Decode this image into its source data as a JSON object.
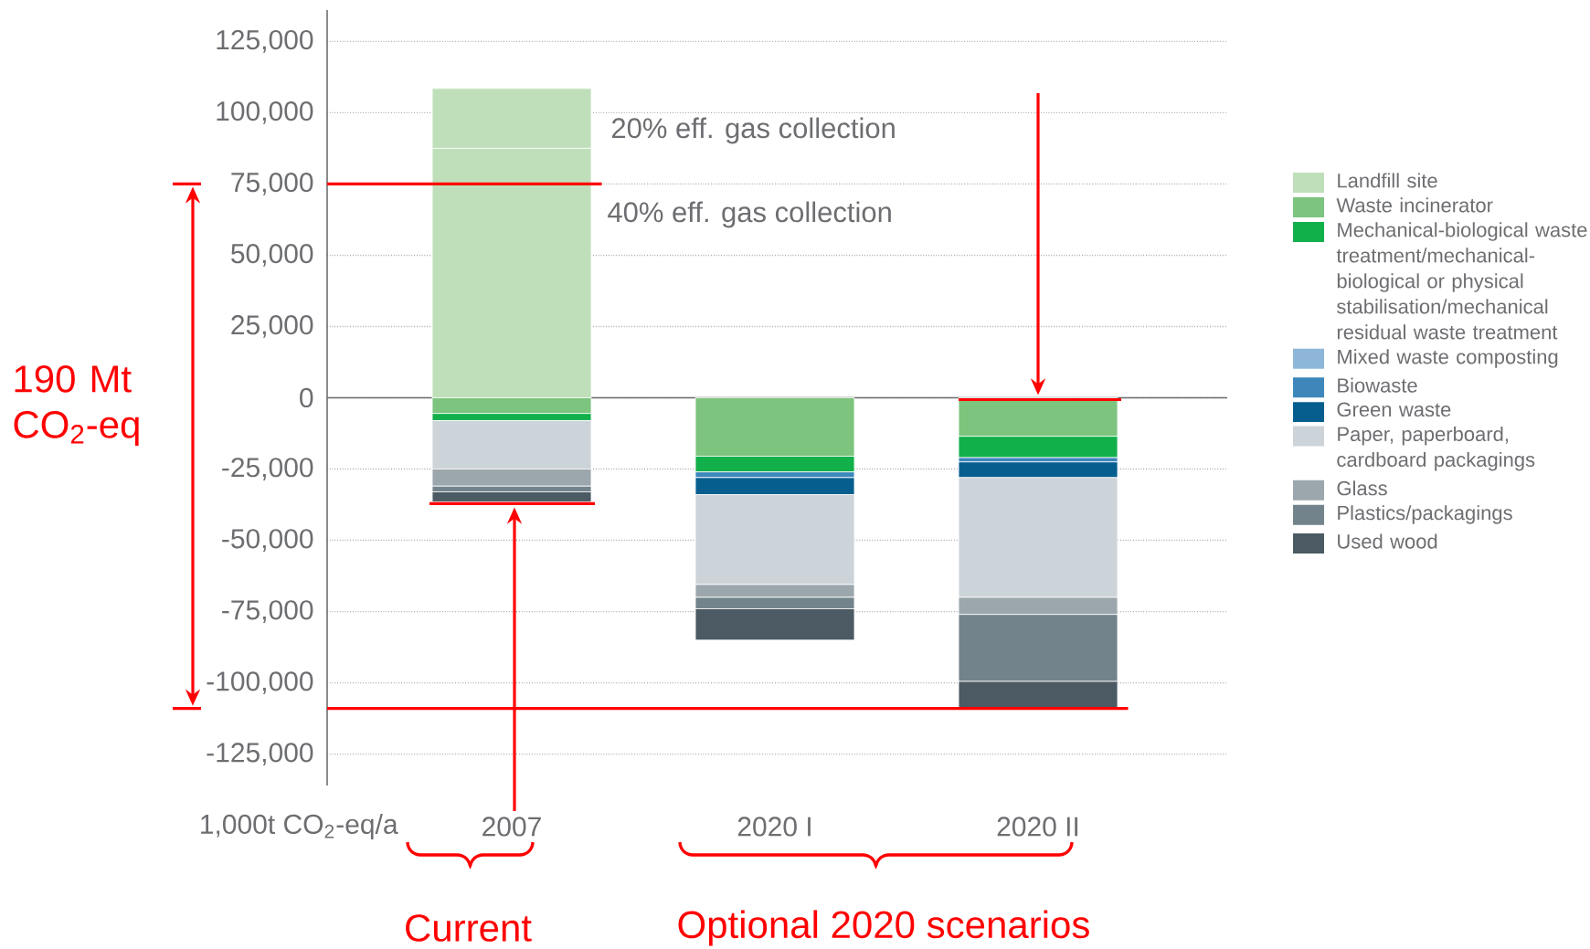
{
  "chart_data": {
    "type": "bar",
    "stacked": true,
    "categories": [
      "2007",
      "2020 I",
      "2020 II"
    ],
    "ylim": [
      -136000,
      136000
    ],
    "yticks": [
      {
        "value": -125000,
        "label": "-125,000"
      },
      {
        "value": -100000,
        "label": "-100,000"
      },
      {
        "value": -75000,
        "label": "-75,000"
      },
      {
        "value": -50000,
        "label": "-50,000"
      },
      {
        "value": -25000,
        "label": "-25,000"
      },
      0,
      {
        "value": 25000,
        "label": "25,000"
      },
      {
        "value": 50000,
        "label": "50,000"
      },
      {
        "value": 75000,
        "label": "75,000"
      },
      {
        "value": 100000,
        "label": "100,000"
      },
      {
        "value": 125000,
        "label": "125,000"
      }
    ],
    "grid": "y",
    "legend": "right",
    "series": [
      {
        "name": "Landfill site",
        "color": "#bfdfba",
        "values": [
          87500,
          null,
          null
        ]
      },
      {
        "color": "#bfdfba",
        "values": [
          21000,
          null,
          null
        ]
      },
      {
        "name": "Waste incinerator",
        "color": "#7dc47e",
        "values": [
          -5500,
          -20500,
          -13500
        ]
      },
      {
        "name": "Mechanical-biological waste treatment/mechanical-biological or physical stabilisation/mechanical residual waste treatment",
        "color": "#12b04b",
        "values": [
          -2500,
          -5500,
          -7500
        ]
      },
      {
        "name": "Mixed waste composting",
        "color": "#8db6d9",
        "values": [
          null,
          null,
          null
        ]
      },
      {
        "name": "Biowaste",
        "color": "#3d87bb",
        "values": [
          null,
          -2000,
          -1500
        ]
      },
      {
        "name": "Green waste",
        "color": "#065e8f",
        "values": [
          null,
          -6000,
          -5500
        ]
      },
      {
        "name": "Paper, paperboard, cardboard packagings",
        "color": "#ccd3d9",
        "values": [
          -17000,
          -31500,
          -42000
        ]
      },
      {
        "name": "Glass",
        "color": "#9ca7ad",
        "values": [
          -6000,
          -4500,
          -6000
        ]
      },
      {
        "name": "Plastics/packagings",
        "color": "#72838b",
        "values": [
          -2000,
          -4000,
          -23500
        ]
      },
      {
        "name": "Used wood",
        "color": "#4b5a63",
        "values": [
          -3500,
          -11000,
          -9500
        ]
      }
    ],
    "ref_lines": [
      {
        "axis": "y",
        "value": 75000,
        "color": "#ff0000"
      },
      {
        "axis": "y",
        "value": -109000,
        "color": "#ff0000"
      }
    ],
    "annotations": [
      "20% eff. gas collection",
      "40% eff. gas collection",
      "1,000t CO$_{2}$-eq/a",
      "190 Mt CO$_{2}$-eq",
      "Current",
      "Optional 2020 scenarios"
    ]
  }
}
